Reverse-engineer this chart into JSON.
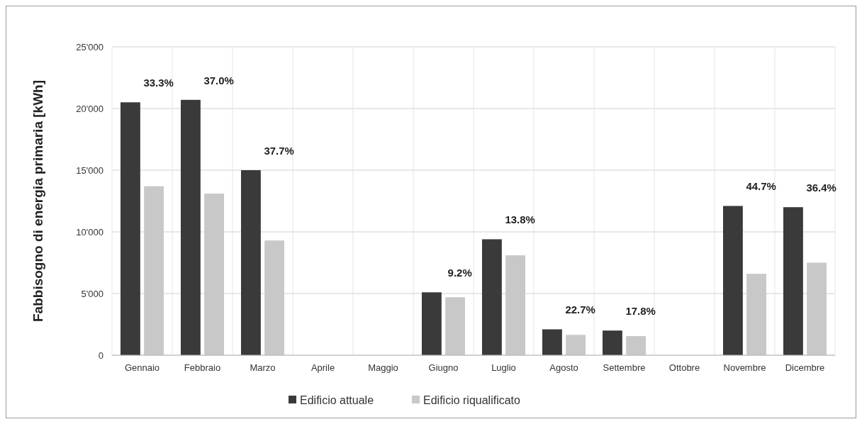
{
  "chart_data": {
    "type": "bar",
    "ylabel": "Fabbisogno di energia primaria  [kWh]",
    "categories": [
      "Gennaio",
      "Febbraio",
      "Marzo",
      "Aprile",
      "Maggio",
      "Giugno",
      "Luglio",
      "Agosto",
      "Settembre",
      "Ottobre",
      "Novembre",
      "Dicembre"
    ],
    "series": [
      {
        "name": "Edificio attuale",
        "color": "#3a3a3a",
        "values": [
          20500,
          20700,
          15000,
          null,
          null,
          5100,
          9400,
          2100,
          2000,
          null,
          12100,
          12000
        ]
      },
      {
        "name": "Edificio riqualificato",
        "color": "#c8c8c8",
        "values": [
          13700,
          13100,
          9300,
          null,
          null,
          4700,
          8100,
          1650,
          1550,
          null,
          6600,
          7500
        ]
      }
    ],
    "ylim": [
      0,
      25000
    ],
    "yticks": [
      {
        "value": 0,
        "label": "0"
      },
      {
        "value": 5000,
        "label": "5'000"
      },
      {
        "value": 10000,
        "label": "10'000"
      },
      {
        "value": 15000,
        "label": "15'000"
      },
      {
        "value": 20000,
        "label": "20'000"
      },
      {
        "value": 25000,
        "label": "25'000"
      }
    ],
    "grid": true,
    "legend": "bottom",
    "annotations": [
      "33.3%",
      "37.0%",
      "37.7%",
      "9.2%",
      "13.8%",
      "22.7%",
      "17.8%",
      "44.7%",
      "36.4%"
    ]
  }
}
